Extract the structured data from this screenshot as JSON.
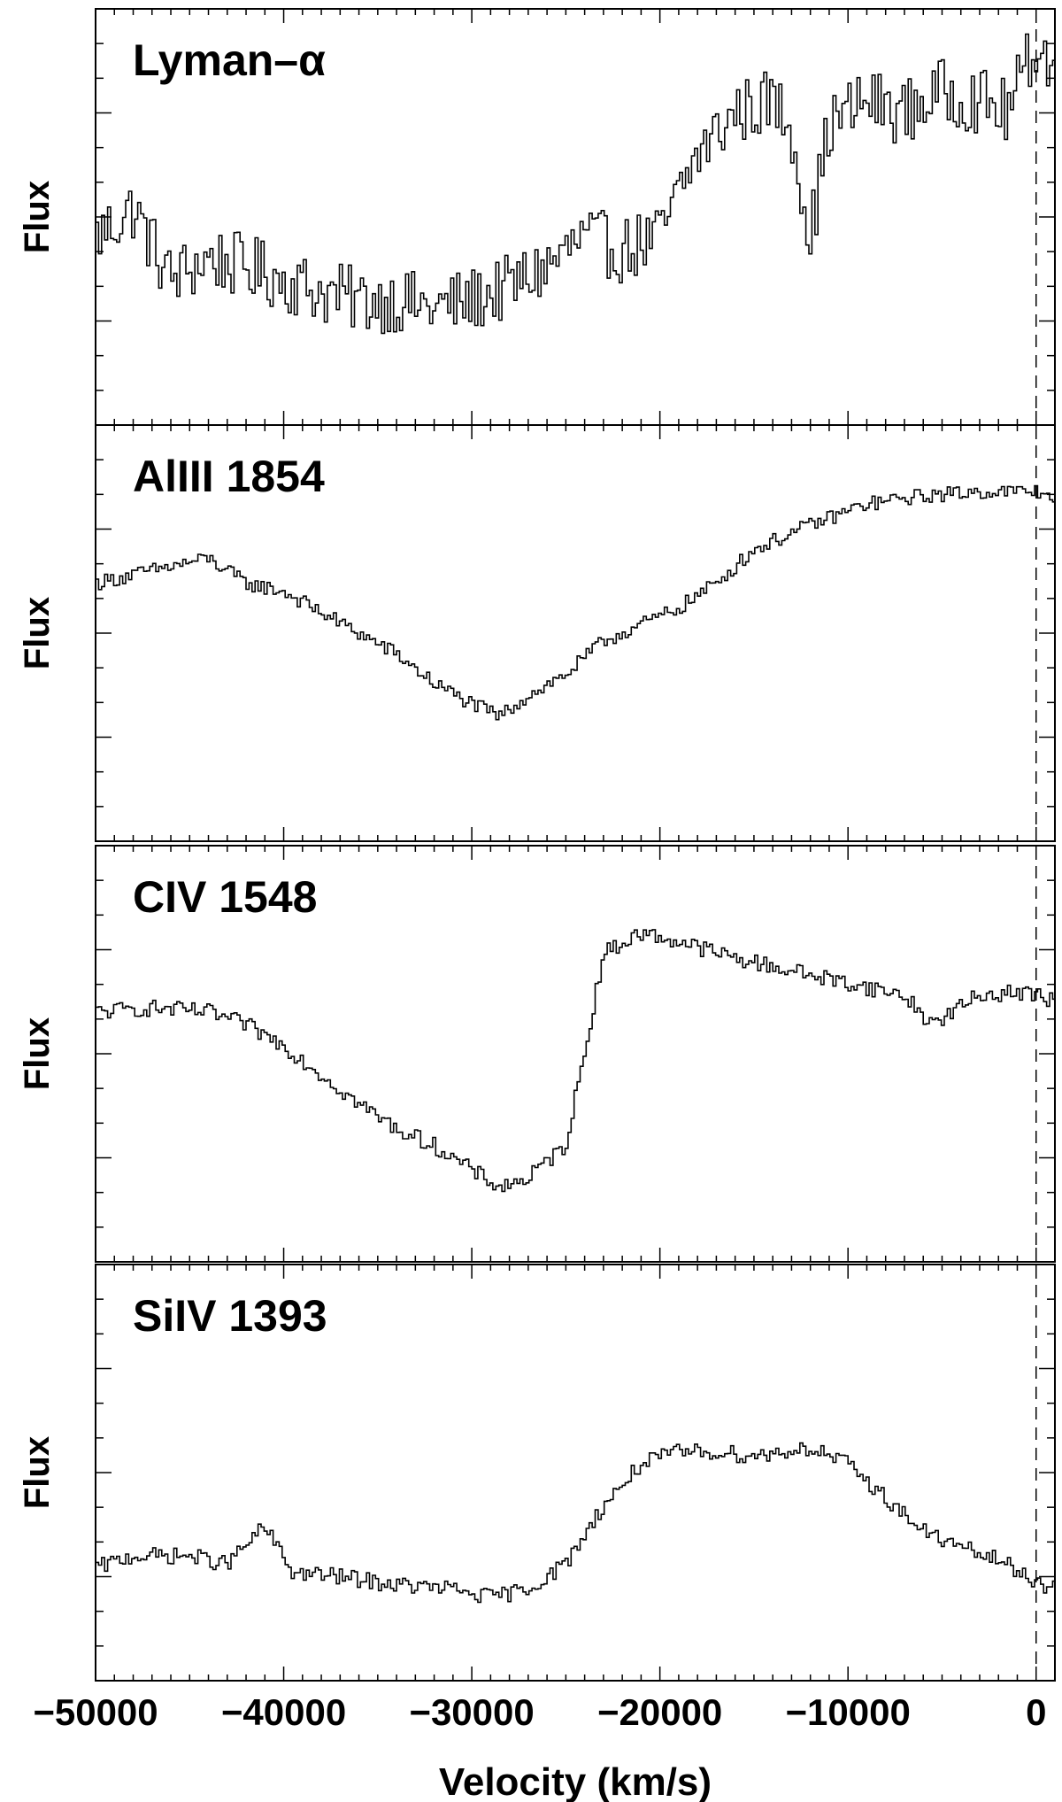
{
  "chart_data": {
    "type": "line",
    "xlabel": "Velocity (km/s)",
    "xlim": [
      -50000,
      1000
    ],
    "x_ticks": [
      -50000,
      -40000,
      -30000,
      -20000,
      -10000,
      0
    ],
    "x_tick_labels": [
      "−50000",
      "−40000",
      "−30000",
      "−20000",
      "−10000",
      "0"
    ],
    "reference_line_x": 0,
    "panels": [
      {
        "title": "Lyman–α",
        "ylabel": "Flux",
        "ylim": [
          0,
          1
        ],
        "points": [
          [
            -50000,
            0.45
          ],
          [
            -48000,
            0.52
          ],
          [
            -46000,
            0.35
          ],
          [
            -44000,
            0.4
          ],
          [
            -42000,
            0.38
          ],
          [
            -40000,
            0.35
          ],
          [
            -38000,
            0.32
          ],
          [
            -36000,
            0.3
          ],
          [
            -34000,
            0.3
          ],
          [
            -32000,
            0.28
          ],
          [
            -30000,
            0.3
          ],
          [
            -28000,
            0.33
          ],
          [
            -26000,
            0.38
          ],
          [
            -24000,
            0.45
          ],
          [
            -22000,
            0.42
          ],
          [
            -20000,
            0.45
          ],
          [
            -18000,
            0.65
          ],
          [
            -16000,
            0.75
          ],
          [
            -14000,
            0.78
          ],
          [
            -13000,
            0.72
          ],
          [
            -12000,
            0.45
          ],
          [
            -11000,
            0.72
          ],
          [
            -9000,
            0.78
          ],
          [
            -7000,
            0.75
          ],
          [
            -5000,
            0.8
          ],
          [
            -3000,
            0.78
          ],
          [
            -1500,
            0.75
          ],
          [
            0,
            0.92
          ],
          [
            1000,
            0.85
          ]
        ],
        "noise": 0.08
      },
      {
        "title": "AlIII 1854",
        "ylabel": "Flux",
        "ylim": [
          0,
          1
        ],
        "points": [
          [
            -50000,
            0.62
          ],
          [
            -47000,
            0.65
          ],
          [
            -44000,
            0.68
          ],
          [
            -42000,
            0.62
          ],
          [
            -40000,
            0.6
          ],
          [
            -38000,
            0.55
          ],
          [
            -36000,
            0.5
          ],
          [
            -34000,
            0.45
          ],
          [
            -32000,
            0.38
          ],
          [
            -30000,
            0.33
          ],
          [
            -28500,
            0.3
          ],
          [
            -27000,
            0.35
          ],
          [
            -25000,
            0.4
          ],
          [
            -23000,
            0.48
          ],
          [
            -21000,
            0.52
          ],
          [
            -19000,
            0.56
          ],
          [
            -17000,
            0.62
          ],
          [
            -15000,
            0.7
          ],
          [
            -12000,
            0.76
          ],
          [
            -9000,
            0.81
          ],
          [
            -6000,
            0.83
          ],
          [
            -3000,
            0.84
          ],
          [
            0,
            0.84
          ],
          [
            1000,
            0.83
          ]
        ],
        "noise": 0.018
      },
      {
        "title": "CIV 1548",
        "ylabel": "Flux",
        "ylim": [
          0,
          1
        ],
        "points": [
          [
            -50000,
            0.6
          ],
          [
            -47000,
            0.61
          ],
          [
            -44000,
            0.6
          ],
          [
            -42000,
            0.57
          ],
          [
            -40000,
            0.52
          ],
          [
            -38000,
            0.45
          ],
          [
            -36000,
            0.38
          ],
          [
            -34000,
            0.32
          ],
          [
            -32000,
            0.28
          ],
          [
            -30000,
            0.22
          ],
          [
            -28500,
            0.18
          ],
          [
            -27000,
            0.2
          ],
          [
            -25000,
            0.28
          ],
          [
            -24000,
            0.5
          ],
          [
            -23000,
            0.74
          ],
          [
            -21000,
            0.79
          ],
          [
            -19000,
            0.77
          ],
          [
            -16000,
            0.73
          ],
          [
            -13000,
            0.7
          ],
          [
            -10000,
            0.67
          ],
          [
            -7000,
            0.64
          ],
          [
            -5500,
            0.57
          ],
          [
            -4500,
            0.6
          ],
          [
            -3000,
            0.64
          ],
          [
            -1000,
            0.65
          ],
          [
            1000,
            0.63
          ]
        ],
        "noise": 0.02
      },
      {
        "title": "SiIV 1393",
        "ylabel": "Flux",
        "ylim": [
          0,
          1
        ],
        "points": [
          [
            -50000,
            0.27
          ],
          [
            -48000,
            0.3
          ],
          [
            -45000,
            0.3
          ],
          [
            -43000,
            0.28
          ],
          [
            -41000,
            0.37
          ],
          [
            -39500,
            0.26
          ],
          [
            -37000,
            0.25
          ],
          [
            -34000,
            0.23
          ],
          [
            -31000,
            0.22
          ],
          [
            -29000,
            0.2
          ],
          [
            -27000,
            0.22
          ],
          [
            -25000,
            0.28
          ],
          [
            -23000,
            0.42
          ],
          [
            -21000,
            0.52
          ],
          [
            -19000,
            0.55
          ],
          [
            -17000,
            0.55
          ],
          [
            -15000,
            0.54
          ],
          [
            -12000,
            0.56
          ],
          [
            -10000,
            0.52
          ],
          [
            -8000,
            0.44
          ],
          [
            -6000,
            0.36
          ],
          [
            -4000,
            0.32
          ],
          [
            -2000,
            0.29
          ],
          [
            0,
            0.24
          ],
          [
            1000,
            0.22
          ]
        ],
        "noise": 0.02
      }
    ]
  }
}
